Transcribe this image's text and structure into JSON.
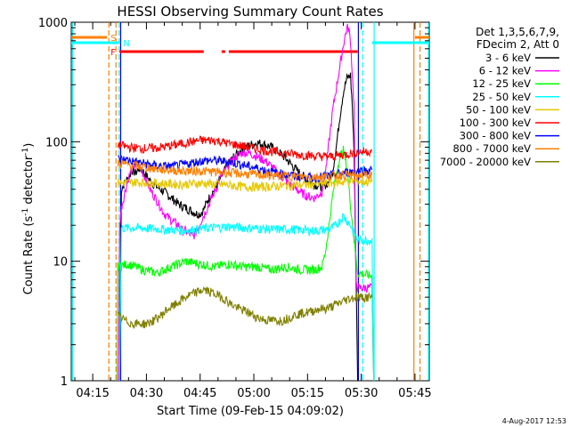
{
  "chart_data": {
    "type": "line",
    "title": "HESSI Observing Summary Count Rates",
    "xlabel": "Start Time (09-Feb-15 04:09:02)",
    "ylabel_main": "Count Rate (s",
    "ylabel_sup1": "-1",
    "ylabel_mid": " detector",
    "ylabel_sup2": "-1",
    "ylabel_end": ")",
    "x_unit": "minutes since 04:09:02",
    "xlim": [
      0,
      100
    ],
    "ylim": [
      1,
      1000
    ],
    "yscale": "log",
    "xticks": [
      {
        "t": 6,
        "label": "04:15"
      },
      {
        "t": 21,
        "label": "04:30"
      },
      {
        "t": 36,
        "label": "04:45"
      },
      {
        "t": 51,
        "label": "05:00"
      },
      {
        "t": 66,
        "label": "05:15"
      },
      {
        "t": 81,
        "label": "05:30"
      },
      {
        "t": 96,
        "label": "05:45"
      }
    ],
    "yticks": [
      {
        "v": 1,
        "label": "1"
      },
      {
        "v": 10,
        "label": "10"
      },
      {
        "v": 100,
        "label": "100"
      },
      {
        "v": 1000,
        "label": "1000"
      }
    ],
    "legend_header": [
      "Det 1,3,5,6,7,9,",
      "FDecim 2, Att 0"
    ],
    "series": [
      {
        "name": "3 - 6 keV",
        "color": "#000000",
        "points": [
          [
            13.5,
            0.9
          ],
          [
            14,
            40
          ],
          [
            15,
            46
          ],
          [
            16,
            50
          ],
          [
            17,
            58
          ],
          [
            18,
            55
          ],
          [
            19,
            60
          ],
          [
            20,
            57
          ],
          [
            21,
            52
          ],
          [
            22,
            47
          ],
          [
            24,
            42
          ],
          [
            26,
            38
          ],
          [
            28,
            34
          ],
          [
            30,
            30
          ],
          [
            32,
            28
          ],
          [
            34,
            26
          ],
          [
            35,
            25
          ],
          [
            36,
            25
          ],
          [
            37,
            27
          ],
          [
            38,
            32
          ],
          [
            40,
            40
          ],
          [
            42,
            52
          ],
          [
            44,
            66
          ],
          [
            46,
            78
          ],
          [
            48,
            88
          ],
          [
            50,
            94
          ],
          [
            52,
            98
          ],
          [
            54,
            95
          ],
          [
            56,
            90
          ],
          [
            58,
            82
          ],
          [
            60,
            72
          ],
          [
            62,
            62
          ],
          [
            64,
            54
          ],
          [
            66,
            48
          ],
          [
            68,
            44
          ],
          [
            70,
            42
          ],
          [
            72,
            46
          ],
          [
            73,
            56
          ],
          [
            74,
            90
          ],
          [
            75,
            160
          ],
          [
            76,
            260
          ],
          [
            77,
            340
          ],
          [
            78,
            360
          ],
          [
            78.5,
            200
          ],
          [
            79,
            80
          ],
          [
            80,
            1
          ],
          [
            80.5,
            0.9
          ]
        ]
      },
      {
        "name": "6 - 12 keV",
        "color": "#ff00ff",
        "points": [
          [
            13.2,
            0.9
          ],
          [
            13.5,
            20
          ],
          [
            14,
            28
          ],
          [
            15,
            38
          ],
          [
            16,
            50
          ],
          [
            17,
            60
          ],
          [
            18,
            65
          ],
          [
            19,
            62
          ],
          [
            20,
            55
          ],
          [
            21,
            48
          ],
          [
            22,
            40
          ],
          [
            24,
            32
          ],
          [
            26,
            25
          ],
          [
            28,
            22
          ],
          [
            30,
            20
          ],
          [
            31,
            18
          ],
          [
            32,
            18
          ],
          [
            33,
            17
          ],
          [
            34,
            16
          ],
          [
            35,
            18
          ],
          [
            36,
            21
          ],
          [
            38,
            28
          ],
          [
            40,
            38
          ],
          [
            42,
            52
          ],
          [
            44,
            65
          ],
          [
            46,
            75
          ],
          [
            48,
            82
          ],
          [
            50,
            80
          ],
          [
            52,
            75
          ],
          [
            54,
            70
          ],
          [
            56,
            62
          ],
          [
            58,
            54
          ],
          [
            60,
            47
          ],
          [
            62,
            42
          ],
          [
            64,
            38
          ],
          [
            66,
            35
          ],
          [
            68,
            34
          ],
          [
            70,
            38
          ],
          [
            71,
            55
          ],
          [
            72,
            100
          ],
          [
            73,
            180
          ],
          [
            74,
            280
          ],
          [
            75,
            420
          ],
          [
            76,
            650
          ],
          [
            77,
            900
          ],
          [
            77.5,
            880
          ],
          [
            78,
            700
          ],
          [
            79,
            200
          ],
          [
            79.5,
            7
          ],
          [
            80,
            6
          ],
          [
            84,
            6
          ],
          [
            84.5,
            0.9
          ]
        ]
      },
      {
        "name": "12 - 25 keV",
        "color": "#00ff00",
        "points": [
          [
            12.8,
            0.9
          ],
          [
            13,
            9
          ],
          [
            16,
            9.5
          ],
          [
            20,
            8.5
          ],
          [
            24,
            8
          ],
          [
            28,
            9
          ],
          [
            32,
            10
          ],
          [
            36,
            9.5
          ],
          [
            40,
            9
          ],
          [
            44,
            9.5
          ],
          [
            48,
            9
          ],
          [
            52,
            9
          ],
          [
            56,
            8.5
          ],
          [
            60,
            9
          ],
          [
            64,
            8.5
          ],
          [
            68,
            8.5
          ],
          [
            70,
            9
          ],
          [
            71,
            12
          ],
          [
            72,
            20
          ],
          [
            73,
            35
          ],
          [
            74,
            55
          ],
          [
            75,
            75
          ],
          [
            76,
            85
          ],
          [
            77,
            60
          ],
          [
            78,
            30
          ],
          [
            79,
            15
          ],
          [
            80,
            8
          ],
          [
            84,
            7.5
          ],
          [
            84.5,
            0.9
          ]
        ]
      },
      {
        "name": "25 - 50 keV",
        "color": "#00ffff",
        "points": [
          [
            13.5,
            0.9
          ],
          [
            14,
            19
          ],
          [
            20,
            19
          ],
          [
            26,
            18.5
          ],
          [
            32,
            18
          ],
          [
            38,
            19
          ],
          [
            44,
            19.5
          ],
          [
            50,
            19
          ],
          [
            56,
            18.5
          ],
          [
            62,
            18.5
          ],
          [
            68,
            18
          ],
          [
            72,
            18.5
          ],
          [
            74,
            20
          ],
          [
            76,
            24
          ],
          [
            78,
            20
          ],
          [
            80,
            15
          ],
          [
            84,
            15
          ],
          [
            84.5,
            0.9
          ]
        ]
      },
      {
        "name": "50 - 100 keV",
        "color": "#e6c800",
        "points": [
          [
            13,
            45
          ],
          [
            18,
            46
          ],
          [
            24,
            45
          ],
          [
            30,
            44
          ],
          [
            36,
            45
          ],
          [
            42,
            44
          ],
          [
            48,
            42
          ],
          [
            54,
            42
          ],
          [
            60,
            43
          ],
          [
            66,
            44
          ],
          [
            72,
            45
          ],
          [
            78,
            47
          ],
          [
            84,
            46
          ]
        ]
      },
      {
        "name": "100 - 300 keV",
        "color": "#ff0000",
        "points": [
          [
            13,
            95
          ],
          [
            16,
            90
          ],
          [
            20,
            88
          ],
          [
            24,
            89
          ],
          [
            28,
            93
          ],
          [
            32,
            98
          ],
          [
            36,
            103
          ],
          [
            40,
            103
          ],
          [
            44,
            97
          ],
          [
            48,
            92
          ],
          [
            52,
            87
          ],
          [
            56,
            83
          ],
          [
            60,
            80
          ],
          [
            64,
            78
          ],
          [
            68,
            76
          ],
          [
            72,
            75
          ],
          [
            76,
            78
          ],
          [
            80,
            82
          ],
          [
            84,
            84
          ]
        ]
      },
      {
        "name": "300 - 800 keV",
        "color": "#0000ff",
        "points": [
          [
            13,
            72
          ],
          [
            16,
            70
          ],
          [
            20,
            66
          ],
          [
            24,
            63
          ],
          [
            28,
            62
          ],
          [
            32,
            65
          ],
          [
            36,
            69
          ],
          [
            40,
            70
          ],
          [
            44,
            68
          ],
          [
            48,
            64
          ],
          [
            52,
            60
          ],
          [
            56,
            56
          ],
          [
            60,
            53
          ],
          [
            64,
            51
          ],
          [
            68,
            50
          ],
          [
            72,
            52
          ],
          [
            76,
            55
          ],
          [
            80,
            57
          ],
          [
            84,
            58
          ]
        ]
      },
      {
        "name": "800 - 7000 keV",
        "color": "#ff8000",
        "points": [
          [
            13,
            66
          ],
          [
            16,
            64
          ],
          [
            20,
            62
          ],
          [
            24,
            59
          ],
          [
            28,
            58
          ],
          [
            32,
            57
          ],
          [
            36,
            57
          ],
          [
            40,
            56
          ],
          [
            44,
            55
          ],
          [
            48,
            54
          ],
          [
            52,
            53
          ],
          [
            56,
            52
          ],
          [
            60,
            52
          ],
          [
            64,
            51
          ],
          [
            68,
            51
          ],
          [
            72,
            52
          ],
          [
            76,
            53
          ],
          [
            80,
            52
          ],
          [
            84,
            53
          ]
        ]
      },
      {
        "name": "7000 - 20000 keV",
        "color": "#808000",
        "points": [
          [
            13,
            3.5
          ],
          [
            15,
            3.2
          ],
          [
            17,
            3
          ],
          [
            19,
            3
          ],
          [
            21,
            3
          ],
          [
            23,
            3.2
          ],
          [
            25,
            3.5
          ],
          [
            27,
            4
          ],
          [
            29,
            4.3
          ],
          [
            31,
            4.8
          ],
          [
            33,
            5.2
          ],
          [
            35,
            5.5
          ],
          [
            37,
            5.8
          ],
          [
            39,
            5.5
          ],
          [
            41,
            5.2
          ],
          [
            43,
            4.8
          ],
          [
            45,
            4.3
          ],
          [
            47,
            4
          ],
          [
            49,
            3.8
          ],
          [
            51,
            3.5
          ],
          [
            53,
            3.3
          ],
          [
            55,
            3.2
          ],
          [
            57,
            3.2
          ],
          [
            59,
            3.2
          ],
          [
            61,
            3.4
          ],
          [
            63,
            3.6
          ],
          [
            65,
            3.7
          ],
          [
            67,
            3.8
          ],
          [
            69,
            4
          ],
          [
            71,
            4
          ],
          [
            73,
            4.2
          ],
          [
            75,
            4.5
          ],
          [
            77,
            4.8
          ],
          [
            79,
            5
          ],
          [
            81,
            5
          ],
          [
            84,
            5
          ]
        ]
      }
    ],
    "flag_lines": [
      {
        "label": "S",
        "color": "#ff8000",
        "segments": [
          [
            0,
            10
          ],
          [
            96,
            100
          ]
        ]
      },
      {
        "label": "N",
        "color": "#00ffff",
        "segments": [
          [
            0,
            13.5
          ],
          [
            84,
            100
          ]
        ]
      },
      {
        "label": "F",
        "color": "#ff0000",
        "segments": [
          [
            13.5,
            37
          ],
          [
            42,
            43
          ],
          [
            44,
            80
          ]
        ]
      }
    ],
    "vlines": [
      {
        "t": 0.4,
        "color": "#00ffff",
        "style": "solid"
      },
      {
        "t": 10.5,
        "color": "#ff8000",
        "style": "dashed"
      },
      {
        "t": 12.5,
        "color": "#ff8000",
        "style": "dashed"
      },
      {
        "t": 13.4,
        "color": "#00ffff",
        "style": "dashed"
      },
      {
        "t": 13.8,
        "color": "#0000ff",
        "style": "solid"
      },
      {
        "t": 80.2,
        "color": "#0000ff",
        "style": "solid"
      },
      {
        "t": 81.4,
        "color": "#00ffff",
        "style": "dashed"
      },
      {
        "t": 84.6,
        "color": "#00ffff",
        "style": "solid"
      },
      {
        "t": 95.7,
        "color": "#ff8000",
        "style": "solid"
      },
      {
        "t": 97.4,
        "color": "#ff8000",
        "style": "dashed"
      },
      {
        "t": 99.8,
        "color": "#00ffff",
        "style": "solid"
      }
    ],
    "grid": false,
    "legend_position": "right",
    "timestamp": "4-Aug-2017 12:53"
  }
}
